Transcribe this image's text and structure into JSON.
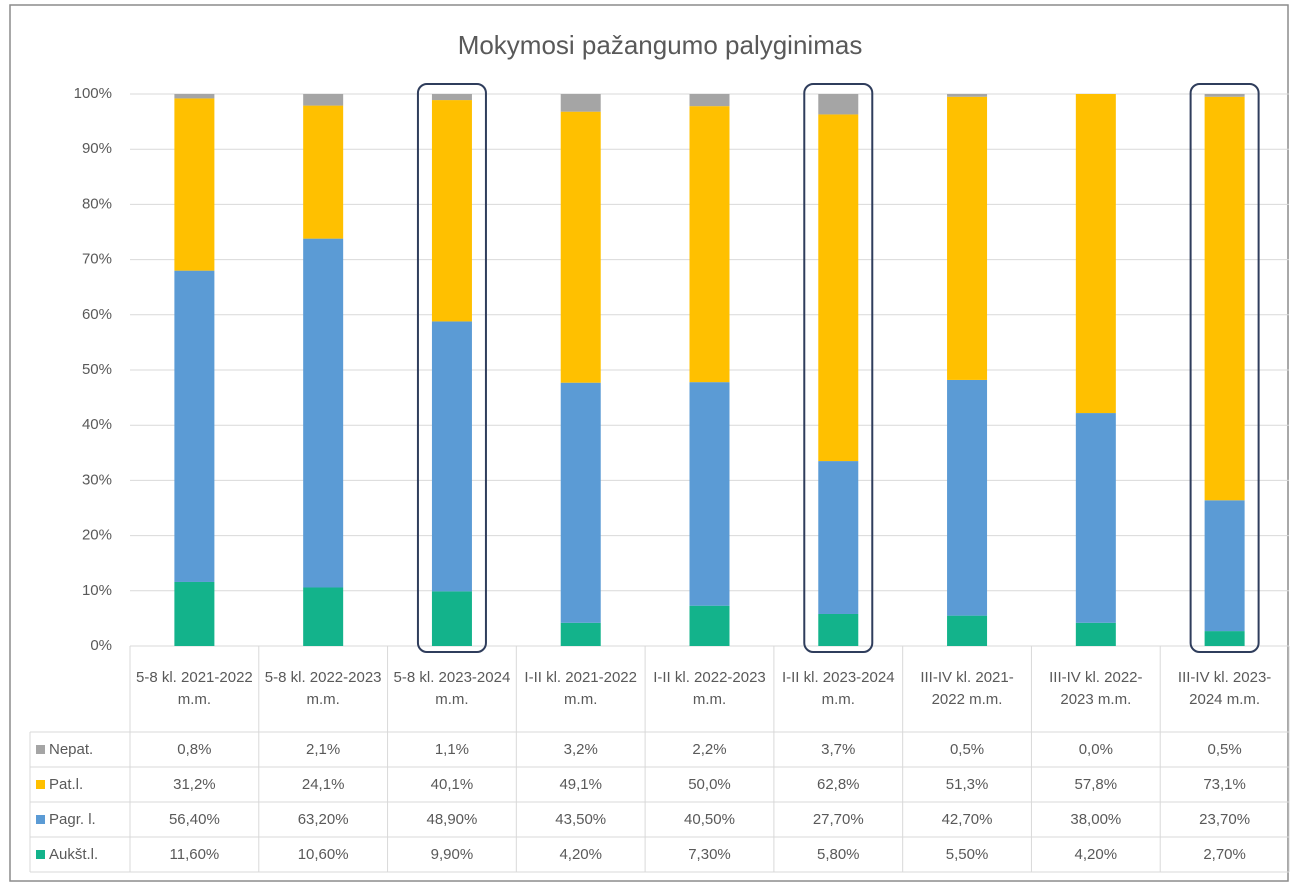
{
  "chart_data": {
    "type": "stacked_bar",
    "title": "Mokymosi pažangumo palyginimas",
    "categories": [
      "5-8 kl. 2021-2022 m.m.",
      "5-8 kl. 2022-2023 m.m.",
      "5-8  kl. 2023-2024 m.m.",
      "I-II kl. 2021-2022 m.m.",
      "I-II kl. 2022-2023 m.m.",
      "I-II kl. 2023-2024 m.m.",
      "III-IV kl. 2021-2022 m.m.",
      "III-IV  kl. 2022-2023 m.m.",
      "III-IV kl. 2023-2024 m.m."
    ],
    "series": [
      {
        "name": "Nepat.",
        "color": "#a5a5a5",
        "values": [
          0.8,
          2.1,
          1.1,
          3.2,
          2.2,
          3.7,
          0.5,
          0.0,
          0.5
        ],
        "value_labels": [
          "0,8%",
          "2,1%",
          "1,1%",
          "3,2%",
          "2,2%",
          "3,7%",
          "0,5%",
          "0,0%",
          "0,5%"
        ]
      },
      {
        "name": "Pat.l.",
        "color": "#ffc000",
        "values": [
          31.2,
          24.1,
          40.1,
          49.1,
          50.0,
          62.8,
          51.3,
          57.8,
          73.1
        ],
        "value_labels": [
          "31,2%",
          "24,1%",
          "40,1%",
          "49,1%",
          "50,0%",
          "62,8%",
          "51,3%",
          "57,8%",
          "73,1%"
        ]
      },
      {
        "name": "Pagr. l.",
        "color": "#5b9bd5",
        "values": [
          56.4,
          63.2,
          48.9,
          43.5,
          40.5,
          27.7,
          42.7,
          38.0,
          23.7
        ],
        "value_labels": [
          "56,40%",
          "63,20%",
          "48,90%",
          "43,50%",
          "40,50%",
          "27,70%",
          "42,70%",
          "38,00%",
          "23,70%"
        ]
      },
      {
        "name": "Aukšt.l.",
        "color": "#13b38b",
        "values": [
          11.6,
          10.6,
          9.9,
          4.2,
          7.3,
          5.8,
          5.5,
          4.2,
          2.7
        ],
        "value_labels": [
          "11,60%",
          "10,60%",
          "9,90%",
          "4,20%",
          "7,30%",
          "5,80%",
          "5,50%",
          "4,20%",
          "2,70%"
        ]
      }
    ],
    "ylim": [
      0,
      100
    ],
    "yticks": [
      {
        "value": 0,
        "label": "0%"
      },
      {
        "value": 10,
        "label": "10%"
      },
      {
        "value": 20,
        "label": "20%"
      },
      {
        "value": 30,
        "label": "30%"
      },
      {
        "value": 40,
        "label": "40%"
      },
      {
        "value": 50,
        "label": "50%"
      },
      {
        "value": 60,
        "label": "60%"
      },
      {
        "value": 70,
        "label": "70%"
      },
      {
        "value": 80,
        "label": "80%"
      },
      {
        "value": 90,
        "label": "90%"
      },
      {
        "value": 100,
        "label": "100%"
      }
    ],
    "grid": true
  }
}
